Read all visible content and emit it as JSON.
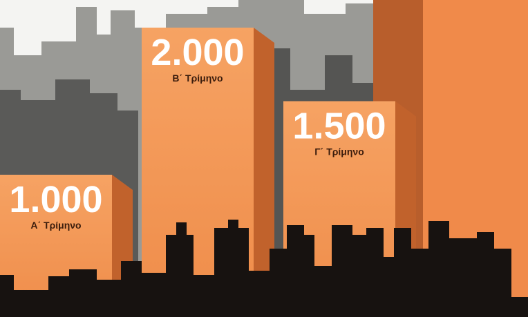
{
  "chart_data": {
    "type": "bar",
    "categories": [
      "Α΄ Τρίμηνο",
      "Β΄ Τρίμηνο",
      "Γ΄ Τρίμηνο"
    ],
    "values": [
      1000,
      2000,
      1500
    ],
    "value_labels": [
      "1.000",
      "2.000",
      "1.500"
    ],
    "color": "#f2924f"
  }
}
